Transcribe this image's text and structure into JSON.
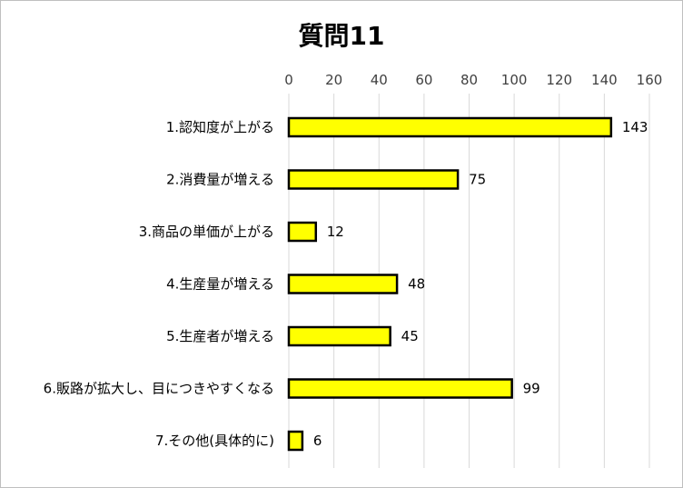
{
  "chart_data": {
    "type": "bar",
    "orientation": "horizontal",
    "title": "質問11",
    "categories": [
      "1.認知度が上がる",
      "2.消費量が増える",
      "3.商品の単価が上がる",
      "4.生産量が増える",
      "5.生産者が増える",
      "6.販路が拡大し、目につきやすくなる",
      "7.その他(具体的に)"
    ],
    "values": [
      143,
      75,
      12,
      48,
      45,
      99,
      6
    ],
    "xlim": [
      0,
      160
    ],
    "xticks": [
      0,
      20,
      40,
      60,
      80,
      100,
      120,
      140,
      160
    ],
    "x_axis_position": "top",
    "grid": true,
    "legend": "none",
    "data_labels": true,
    "colors": {
      "bar_fill": "#FFFF00",
      "bar_stroke": "#000000",
      "grid": "#d9d9d9"
    }
  }
}
